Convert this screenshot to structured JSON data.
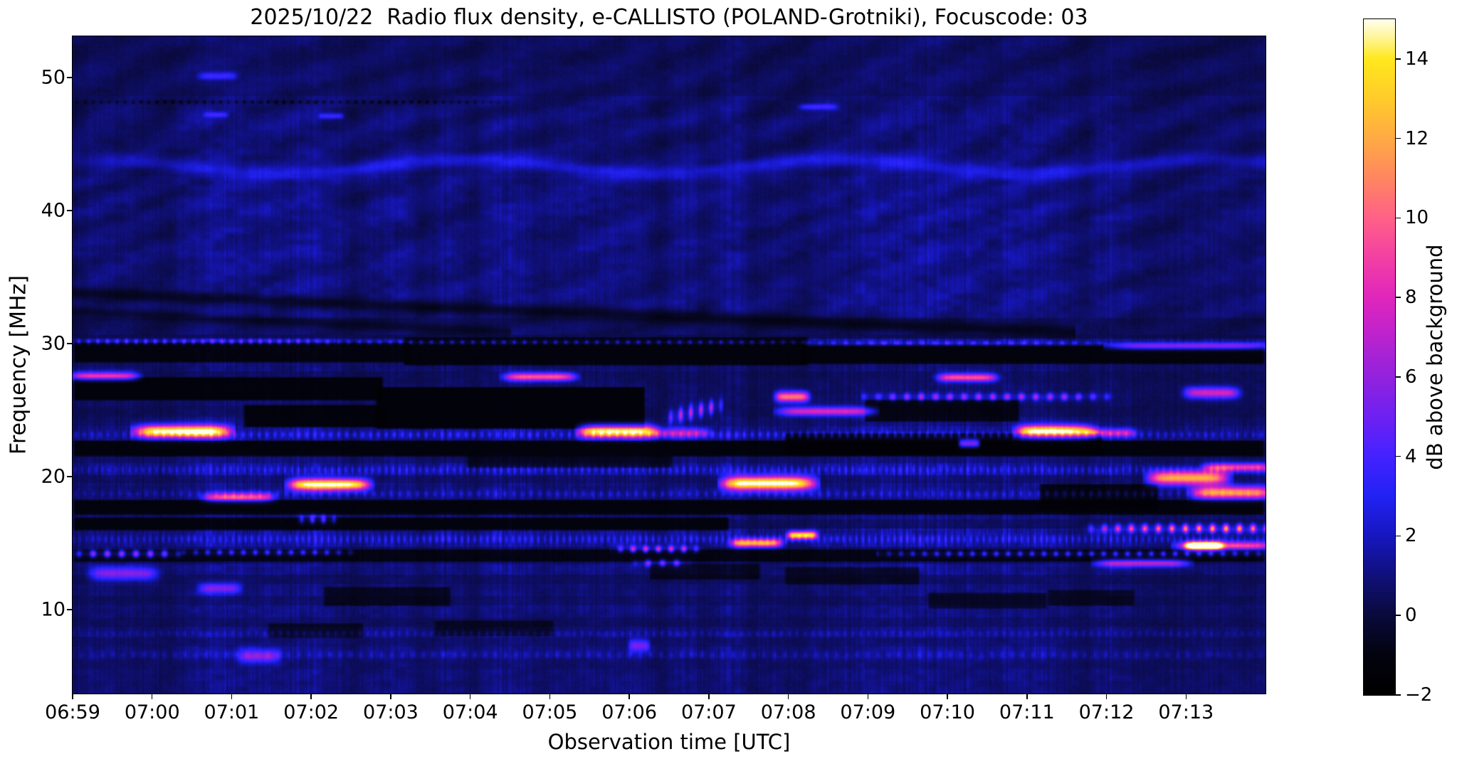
{
  "chart_data": {
    "type": "heatmap",
    "subtype": "radio-spectrogram",
    "title": "2025/10/22  Radio flux density, e-CALLISTO (POLAND-Grotniki), Focuscode: 03",
    "xlabel": "Observation time [UTC]",
    "ylabel": "Frequency [MHz]",
    "colorbar_label": "dB above background",
    "x_ticks": [
      "06:59",
      "07:00",
      "07:01",
      "07:02",
      "07:03",
      "07:04",
      "07:05",
      "07:06",
      "07:07",
      "07:08",
      "07:09",
      "07:10",
      "07:11",
      "07:12",
      "07:13"
    ],
    "x_tick_values_min": [
      0,
      1,
      2,
      3,
      4,
      5,
      6,
      7,
      8,
      9,
      10,
      11,
      12,
      13,
      14
    ],
    "start_time_utc": "06:59",
    "end_time_utc": "07:14",
    "time_span_minutes": 15,
    "y_ticks": [
      "50",
      "40",
      "30",
      "20",
      "10"
    ],
    "y_tick_values_mhz": [
      50,
      40,
      30,
      20,
      10
    ],
    "freq_range_mhz": [
      3.7,
      53.1
    ],
    "colorbar_ticks": [
      "14",
      "12",
      "10",
      "8",
      "6",
      "4",
      "2",
      "0",
      "−2"
    ],
    "colorbar_tick_values": [
      14,
      12,
      10,
      8,
      6,
      4,
      2,
      0,
      -2
    ],
    "value_range_db": [
      -2,
      15
    ],
    "grid": false,
    "legend": "colorbar-right",
    "colormap": [
      {
        "v": -2,
        "c": "#000000"
      },
      {
        "v": -1,
        "c": "#03030f"
      },
      {
        "v": 0,
        "c": "#0a0a3d"
      },
      {
        "v": 1,
        "c": "#10107c"
      },
      {
        "v": 2,
        "c": "#1717c0"
      },
      {
        "v": 3,
        "c": "#2222f5"
      },
      {
        "v": 4,
        "c": "#4522ff"
      },
      {
        "v": 5,
        "c": "#6e21f2"
      },
      {
        "v": 6,
        "c": "#9322dd"
      },
      {
        "v": 7,
        "c": "#ba23ce"
      },
      {
        "v": 8,
        "c": "#e026bc"
      },
      {
        "v": 9,
        "c": "#f340a3"
      },
      {
        "v": 10,
        "c": "#ff6187"
      },
      {
        "v": 11,
        "c": "#ff8660"
      },
      {
        "v": 12,
        "c": "#ffaa44"
      },
      {
        "v": 13,
        "c": "#ffcb2a"
      },
      {
        "v": 14,
        "c": "#ffe81d"
      },
      {
        "v": 14.6,
        "c": "#fff6a6"
      },
      {
        "v": 15,
        "c": "#ffffee"
      }
    ],
    "features": [
      {
        "t0": 0.0,
        "t1": 0.8,
        "f": 27.55,
        "df": 0.3,
        "peak": 8.5
      },
      {
        "t0": 0.82,
        "t1": 1.95,
        "f": 23.4,
        "df": 0.45,
        "peak": 14.6
      },
      {
        "t0": 1.6,
        "t1": 2.05,
        "f": 50.1,
        "df": 0.28,
        "peak": 3.6
      },
      {
        "t0": 1.65,
        "t1": 1.95,
        "f": 47.2,
        "df": 0.2,
        "peak": 3.0
      },
      {
        "t0": 3.1,
        "t1": 3.4,
        "f": 47.1,
        "df": 0.2,
        "peak": 3.2
      },
      {
        "t0": 9.15,
        "t1": 9.6,
        "f": 47.8,
        "df": 0.22,
        "peak": 3.4
      },
      {
        "t0": 1.68,
        "t1": 2.5,
        "f": 18.45,
        "df": 0.32,
        "peak": 8.6
      },
      {
        "t0": 2.75,
        "t1": 3.7,
        "f": 19.4,
        "df": 0.42,
        "peak": 14.8
      },
      {
        "t0": 0.05,
        "t1": 1.3,
        "f": 14.2,
        "df": 0.26,
        "peak": 7.8,
        "dot": 0.18
      },
      {
        "t0": 1.45,
        "t1": 3.45,
        "f": 14.3,
        "df": 0.2,
        "peak": 5.2,
        "dot": 0.15
      },
      {
        "t0": 0.25,
        "t1": 1.05,
        "f": 12.7,
        "df": 0.5,
        "peak": 5.2
      },
      {
        "t0": 1.6,
        "t1": 2.1,
        "f": 11.6,
        "df": 0.4,
        "peak": 4.6
      },
      {
        "t0": 2.1,
        "t1": 2.6,
        "f": 6.5,
        "df": 0.5,
        "peak": 4.6
      },
      {
        "t0": 2.85,
        "t1": 3.3,
        "f": 16.8,
        "df": 0.3,
        "peak": 6.0,
        "dot": 0.14
      },
      {
        "t0": 5.45,
        "t1": 6.3,
        "f": 27.5,
        "df": 0.3,
        "peak": 9.5
      },
      {
        "t0": 6.4,
        "t1": 7.3,
        "f": 23.4,
        "df": 0.45,
        "peak": 13.8
      },
      {
        "t0": 7.25,
        "t1": 8.0,
        "f": 23.3,
        "df": 0.35,
        "peak": 5.5
      },
      {
        "t0": 7.5,
        "t1": 8.15,
        "f": 24.9,
        "df": 0.5,
        "peak": 7.5,
        "dot": 0.16,
        "slope": 1.4
      },
      {
        "t0": 8.85,
        "t1": 9.25,
        "f": 26.0,
        "df": 0.38,
        "peak": 10.5
      },
      {
        "t0": 8.9,
        "t1": 10.05,
        "f": 24.9,
        "df": 0.32,
        "peak": 7.8
      },
      {
        "t0": 10.0,
        "t1": 13.0,
        "f": 26.0,
        "df": 0.26,
        "peak": 6.5,
        "dot": 0.18
      },
      {
        "t0": 8.2,
        "t1": 9.3,
        "f": 19.5,
        "df": 0.5,
        "peak": 15.2
      },
      {
        "t0": 8.3,
        "t1": 8.9,
        "f": 15.0,
        "df": 0.3,
        "peak": 11.5
      },
      {
        "t0": 9.0,
        "t1": 9.35,
        "f": 15.6,
        "df": 0.28,
        "peak": 13.4
      },
      {
        "t0": 6.85,
        "t1": 7.85,
        "f": 14.55,
        "df": 0.24,
        "peak": 8.4,
        "dot": 0.16
      },
      {
        "t0": 7.1,
        "t1": 7.7,
        "f": 13.5,
        "df": 0.25,
        "peak": 6.2,
        "dot": 0.18
      },
      {
        "t0": 7.0,
        "t1": 7.25,
        "f": 7.3,
        "df": 0.45,
        "peak": 4.8
      },
      {
        "t0": 10.9,
        "t1": 11.6,
        "f": 27.45,
        "df": 0.3,
        "peak": 9.2
      },
      {
        "t0": 11.9,
        "t1": 12.8,
        "f": 23.4,
        "df": 0.45,
        "peak": 14.2
      },
      {
        "t0": 12.75,
        "t1": 13.35,
        "f": 23.3,
        "df": 0.3,
        "peak": 6.5
      },
      {
        "t0": 11.15,
        "t1": 11.4,
        "f": 22.5,
        "df": 0.3,
        "peak": 7.2
      },
      {
        "t0": 13.55,
        "t1": 14.5,
        "f": 19.9,
        "df": 0.5,
        "peak": 12.0
      },
      {
        "t0": 14.1,
        "t1": 15.05,
        "f": 18.8,
        "df": 0.45,
        "peak": 11.0
      },
      {
        "t0": 14.25,
        "t1": 15.05,
        "f": 20.7,
        "df": 0.3,
        "peak": 8.0
      },
      {
        "t0": 12.8,
        "t1": 15.05,
        "f": 16.1,
        "df": 0.3,
        "peak": 8.0,
        "peak_end": 13.5,
        "dot": 0.17
      },
      {
        "t0": 13.9,
        "t1": 15.05,
        "f": 14.8,
        "df": 0.3,
        "peak": 8.5
      },
      {
        "t0": 14.0,
        "t1": 14.45,
        "f": 14.8,
        "df": 0.3,
        "peak": 13.6
      },
      {
        "t0": 12.9,
        "t1": 14.0,
        "f": 13.5,
        "df": 0.28,
        "peak": 6.8
      },
      {
        "t0": 10.2,
        "t1": 15.05,
        "f": 14.2,
        "df": 0.2,
        "peak": 5.0,
        "dot": 0.15
      },
      {
        "t0": 13.05,
        "t1": 15.05,
        "f": 29.8,
        "df": 0.25,
        "peak": 6.2
      },
      {
        "t0": 14.0,
        "t1": 14.65,
        "f": 26.3,
        "df": 0.4,
        "peak": 7.5
      },
      {
        "t0": 0.0,
        "t1": 3.2,
        "f": 30.15,
        "df": 0.18,
        "peak": 4.6,
        "dot": 0.12
      },
      {
        "t0": 3.2,
        "t1": 9.2,
        "f": 30.1,
        "df": 0.15,
        "peak": 3.4,
        "dot": 0.13
      },
      {
        "t0": 9.3,
        "t1": 12.9,
        "f": 30.05,
        "df": 0.15,
        "peak": 3.6,
        "dot": 0.16
      },
      {
        "t0": 0,
        "t1": 15.05,
        "f": 23.15,
        "df": 0.25,
        "peak": 2.8,
        "dot": 0.1
      },
      {
        "t0": 0,
        "t1": 15.05,
        "f": 20.5,
        "df": 0.28,
        "peak": 2.4,
        "dot": 0.085
      },
      {
        "t0": 0,
        "t1": 15.05,
        "f": 18.7,
        "df": 0.25,
        "peak": 2.0,
        "dot": 0.11
      },
      {
        "t0": 0,
        "t1": 15.05,
        "f": 15.3,
        "df": 0.3,
        "peak": 2.6,
        "dot": 0.08
      },
      {
        "t0": 0,
        "t1": 15.05,
        "f": 8.2,
        "df": 0.22,
        "peak": 1.4,
        "dot": 0.1
      },
      {
        "t0": 0,
        "t1": 15.05,
        "f": 6.6,
        "df": 0.25,
        "peak": 1.5,
        "dot": 0.13
      },
      {
        "t0": 0,
        "t1": 15.05,
        "f": 43.3,
        "df": 0.5,
        "peak": 2.0,
        "wavy": true
      },
      {
        "t0": 0,
        "t1": 5.4,
        "f": 48.15,
        "df": 0.13,
        "peak": -1.2,
        "dot": 0.1
      }
    ],
    "background": {
      "bands": [
        [
          53.1,
          48.6,
          0.55
        ],
        [
          48.6,
          42.6,
          0.8
        ],
        [
          42.6,
          31.9,
          1.0
        ],
        [
          31.9,
          30.7,
          0.55
        ],
        [
          30.7,
          30.35,
          0.3
        ],
        [
          30.35,
          29.95,
          1.15
        ],
        [
          29.95,
          28.7,
          0.4
        ],
        [
          28.7,
          27.9,
          0.8
        ],
        [
          27.9,
          27.0,
          0.5
        ],
        [
          27.0,
          26.2,
          0.55
        ],
        [
          26.2,
          25.3,
          0.7
        ],
        [
          25.3,
          24.5,
          0.55
        ],
        [
          24.5,
          23.8,
          0.75
        ],
        [
          23.8,
          22.7,
          1.15
        ],
        [
          22.7,
          21.7,
          0.4
        ],
        [
          21.7,
          21.0,
          0.85
        ],
        [
          21.0,
          20.1,
          1.15
        ],
        [
          20.1,
          19.5,
          0.65
        ],
        [
          19.5,
          18.3,
          1.0
        ],
        [
          18.3,
          17.4,
          0.35
        ],
        [
          17.4,
          16.8,
          0.8
        ],
        [
          16.8,
          16.1,
          0.5
        ],
        [
          16.1,
          14.7,
          1.25
        ],
        [
          14.7,
          14.0,
          0.65
        ],
        [
          14.0,
          13.4,
          0.55
        ],
        [
          13.4,
          12.6,
          1.0
        ],
        [
          12.6,
          11.9,
          0.6
        ],
        [
          11.9,
          11.0,
          0.9
        ],
        [
          11.0,
          10.3,
          0.55
        ],
        [
          10.3,
          9.4,
          0.9
        ],
        [
          9.4,
          8.7,
          0.65
        ],
        [
          8.7,
          7.9,
          1.0
        ],
        [
          7.9,
          7.2,
          0.7
        ],
        [
          7.2,
          6.3,
          0.95
        ],
        [
          6.3,
          5.5,
          0.78
        ],
        [
          5.5,
          4.6,
          0.95
        ],
        [
          4.6,
          3.69,
          0.82
        ]
      ],
      "dark_rects": [
        [
          0,
          3.85,
          27.3,
          25.95,
          0.22
        ],
        [
          2.2,
          3.9,
          25.2,
          23.95,
          0.25
        ],
        [
          3.85,
          7.15,
          26.55,
          23.8,
          0.18
        ],
        [
          0,
          15,
          22.55,
          21.75,
          0.3
        ],
        [
          0,
          15,
          18.05,
          17.35,
          0.3
        ],
        [
          0,
          8.2,
          16.75,
          16.15,
          0.3
        ],
        [
          9.0,
          12.9,
          23.1,
          21.9,
          0.28
        ],
        [
          12.2,
          13.6,
          19.3,
          17.7,
          0.3
        ],
        [
          0,
          15,
          14.35,
          13.8,
          0.35
        ],
        [
          4.2,
          9.2,
          30.3,
          28.6,
          0.3
        ],
        [
          0,
          4.2,
          29.9,
          28.8,
          0.35
        ],
        [
          9.2,
          15,
          29.65,
          28.7,
          0.3
        ],
        [
          5.0,
          7.5,
          21.4,
          20.9,
          0.45
        ],
        [
          10.0,
          11.85,
          25.6,
          24.35,
          0.35
        ],
        [
          3.2,
          4.7,
          11.5,
          10.5,
          0.45
        ],
        [
          7.3,
          8.6,
          13.3,
          12.5,
          0.45
        ],
        [
          9.0,
          10.6,
          13.0,
          12.1,
          0.5
        ],
        [
          4.6,
          6.0,
          9.0,
          8.2,
          0.5
        ],
        [
          10.8,
          12.2,
          11.1,
          10.3,
          0.5
        ],
        [
          2.5,
          3.6,
          8.8,
          8.1,
          0.5
        ],
        [
          12.3,
          13.3,
          11.3,
          10.5,
          0.5
        ]
      ],
      "diag_lanes": [
        {
          "f0": 33.8,
          "slope": -0.235,
          "t0": 0,
          "t1": 12.6,
          "w": 0.5,
          "k": 0.45
        },
        {
          "f0": 32.4,
          "slope": -0.28,
          "t0": 0,
          "t1": 5.5,
          "w": 0.4,
          "k": 0.6
        }
      ]
    }
  }
}
